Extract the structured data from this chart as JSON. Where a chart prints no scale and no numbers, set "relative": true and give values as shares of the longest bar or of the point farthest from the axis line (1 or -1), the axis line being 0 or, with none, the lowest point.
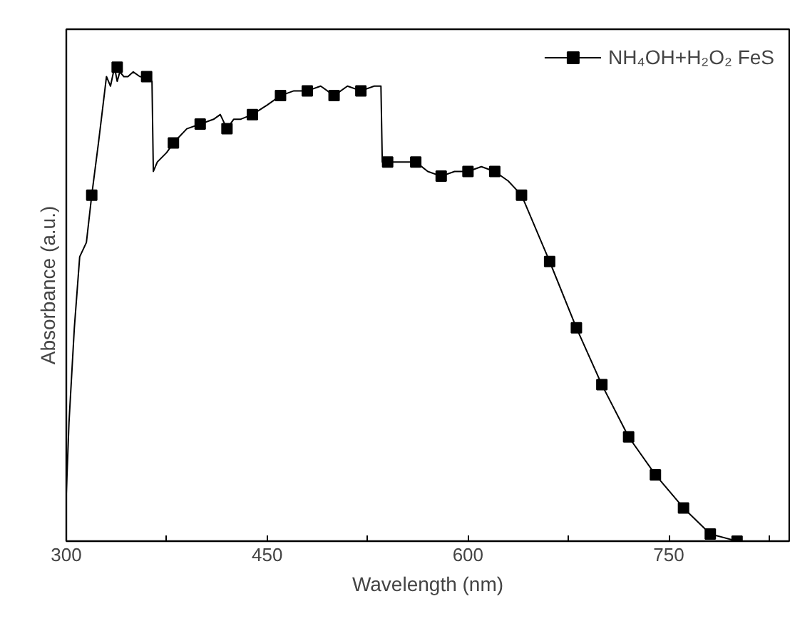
{
  "chart_data": {
    "type": "line",
    "xlabel": "Wavelength (nm)",
    "ylabel": "Absorbance (a.u.)",
    "relative": true,
    "xlim": [
      300,
      840
    ],
    "xticks": [
      300,
      {
        "value": 375,
        "label": null
      },
      450,
      {
        "value": 525,
        "label": null
      },
      600,
      {
        "value": 675,
        "label": null
      },
      750,
      {
        "value": 825,
        "label": null
      }
    ],
    "legend": "top right",
    "grid": false,
    "series": [
      {
        "name": "NH₄OH+H₂O₂ FeS",
        "color": "#000000",
        "marker": "none",
        "x": [
          300,
          302,
          306,
          310,
          315,
          319,
          324,
          327,
          330,
          333,
          336,
          338,
          340,
          343,
          346,
          350,
          355,
          360,
          364,
          365,
          368,
          375,
          380,
          390,
          400,
          410,
          415,
          420,
          425,
          430,
          439,
          450,
          460,
          470,
          480,
          490,
          500,
          510,
          520,
          530,
          535,
          536,
          540,
          550,
          561,
          570,
          580,
          590,
          600,
          610,
          620,
          630,
          640,
          661,
          681,
          700,
          720,
          740,
          761,
          781,
          801
        ],
        "values": [
          0.1,
          0.25,
          0.45,
          0.6,
          0.63,
          0.73,
          0.84,
          0.91,
          0.98,
          0.96,
          1,
          0.97,
          0.99,
          0.98,
          0.98,
          0.99,
          0.98,
          0.98,
          0.97,
          0.78,
          0.8,
          0.82,
          0.84,
          0.87,
          0.88,
          0.89,
          0.9,
          0.87,
          0.89,
          0.89,
          0.9,
          0.92,
          0.94,
          0.95,
          0.95,
          0.96,
          0.94,
          0.96,
          0.95,
          0.96,
          0.96,
          0.8,
          0.8,
          0.8,
          0.8,
          0.78,
          0.77,
          0.78,
          0.78,
          0.79,
          0.78,
          0.76,
          0.73,
          0.59,
          0.45,
          0.33,
          0.22,
          0.14,
          0.07,
          0.015,
          0.0
        ]
      },
      {
        "color": "#000000",
        "type": "scatter",
        "marker": "square",
        "x": [
          319,
          338,
          360,
          380,
          400,
          420,
          439,
          460,
          480,
          500,
          520,
          540,
          561,
          580,
          600,
          620,
          640,
          661,
          681,
          700,
          720,
          740,
          761,
          781,
          801
        ],
        "values": [
          0.73,
          1,
          0.98,
          0.84,
          0.88,
          0.87,
          0.9,
          0.94,
          0.95,
          0.94,
          0.95,
          0.8,
          0.8,
          0.77,
          0.78,
          0.78,
          0.73,
          0.59,
          0.45,
          0.33,
          0.22,
          0.14,
          0.07,
          0.015,
          0.0
        ]
      }
    ]
  }
}
